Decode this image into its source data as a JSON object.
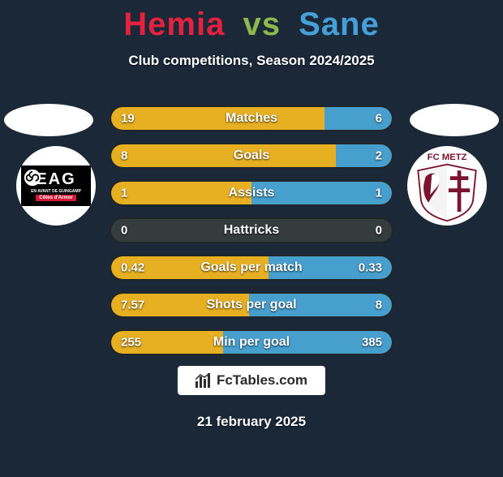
{
  "title": {
    "player1": "Hemia",
    "vs": "vs",
    "player2": "Sane"
  },
  "subtitle": "Club competitions, Season 2024/2025",
  "colors": {
    "player1_accent": "#e4213f",
    "player2_accent": "#459fd8",
    "vs_accent": "#8db84c",
    "bar_bg": "#353c3e",
    "page_bg": "#1a2838",
    "white": "#ffffff",
    "bar_fill_left": "#e7b022",
    "bar_fill_right": "#479fce"
  },
  "stats": [
    {
      "label": "Matches",
      "left_val": "19",
      "right_val": "6",
      "left_pct": 76,
      "right_pct": 24
    },
    {
      "label": "Goals",
      "left_val": "8",
      "right_val": "2",
      "left_pct": 80,
      "right_pct": 20
    },
    {
      "label": "Assists",
      "left_val": "1",
      "right_val": "1",
      "left_pct": 50,
      "right_pct": 50
    },
    {
      "label": "Hattricks",
      "left_val": "0",
      "right_val": "0",
      "left_pct": 0,
      "right_pct": 0
    },
    {
      "label": "Goals per match",
      "left_val": "0.42",
      "right_val": "0.33",
      "left_pct": 56,
      "right_pct": 44
    },
    {
      "label": "Shots per goal",
      "left_val": "7.57",
      "right_val": "8",
      "left_pct": 49,
      "right_pct": 51
    },
    {
      "label": "Min per goal",
      "left_val": "255",
      "right_val": "385",
      "left_pct": 40,
      "right_pct": 60
    }
  ],
  "left_badge": {
    "name": "EAG",
    "line1": "EAG",
    "line2": "EN AVANT DE GUINGAMP",
    "line3": "Côtes d'Armor"
  },
  "right_badge": {
    "name": "FC METZ",
    "top_text": "FC METZ"
  },
  "footer": {
    "site": "FcTables.com",
    "date": "21 february 2025"
  }
}
